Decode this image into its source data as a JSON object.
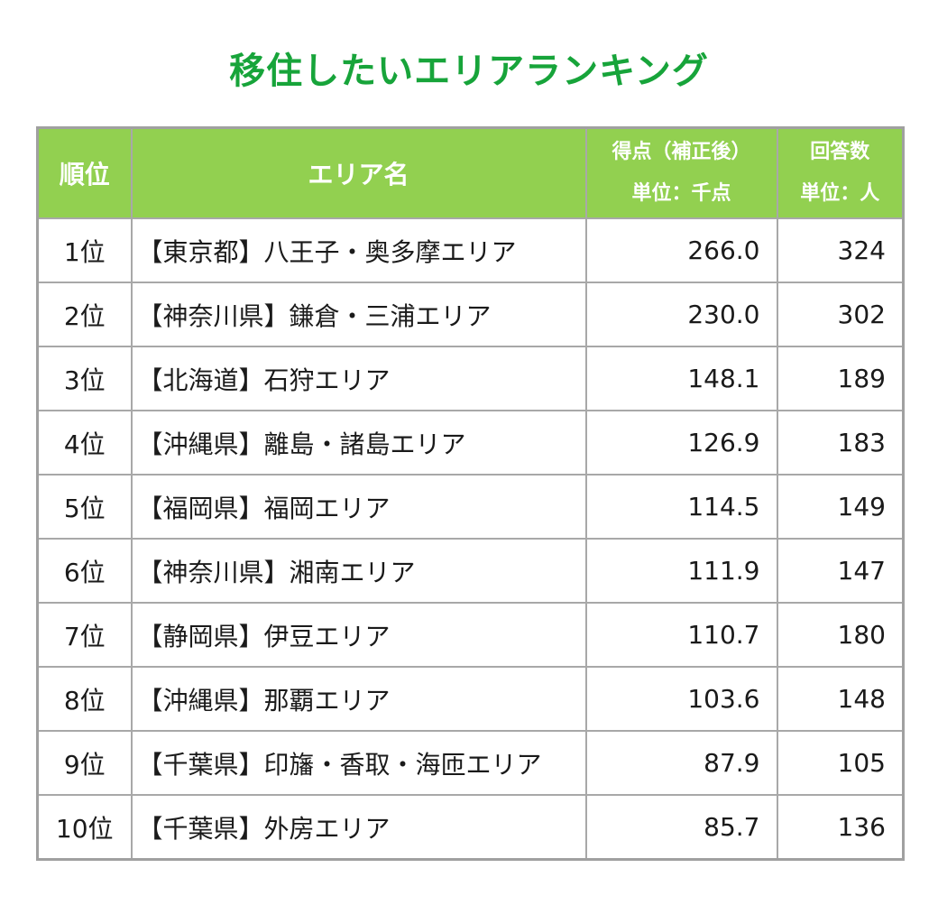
{
  "title": "移住したいエリアランキング",
  "header": {
    "rank": "順位",
    "area": "エリア名",
    "score_line1": "得点（補正後）",
    "score_line2": "単位：千点",
    "answers_line1": "回答数",
    "answers_line2": "単位：人"
  },
  "rows": [
    {
      "rank": "1位",
      "area": "【東京都】八王子・奥多摩エリア",
      "score": "266.0",
      "answers": "324"
    },
    {
      "rank": "2位",
      "area": "【神奈川県】鎌倉・三浦エリア",
      "score": "230.0",
      "answers": "302"
    },
    {
      "rank": "3位",
      "area": "【北海道】石狩エリア",
      "score": "148.1",
      "answers": "189"
    },
    {
      "rank": "4位",
      "area": "【沖縄県】離島・諸島エリア",
      "score": "126.9",
      "answers": "183"
    },
    {
      "rank": "5位",
      "area": "【福岡県】福岡エリア",
      "score": "114.5",
      "answers": "149"
    },
    {
      "rank": "6位",
      "area": "【神奈川県】湘南エリア",
      "score": "111.9",
      "answers": "147"
    },
    {
      "rank": "7位",
      "area": "【静岡県】伊豆エリア",
      "score": "110.7",
      "answers": "180"
    },
    {
      "rank": "8位",
      "area": "【沖縄県】那覇エリア",
      "score": "103.6",
      "answers": "148"
    },
    {
      "rank": "9位",
      "area": "【千葉県】印旛・香取・海匝エリア",
      "score": "87.9",
      "answers": "105"
    },
    {
      "rank": "10位",
      "area": "【千葉県】外房エリア",
      "score": "85.7",
      "answers": "136"
    }
  ],
  "colors": {
    "title": "#17a43a",
    "header_bg": "#92d050",
    "header_text": "#ffffff",
    "border": "#a8a8a8"
  }
}
